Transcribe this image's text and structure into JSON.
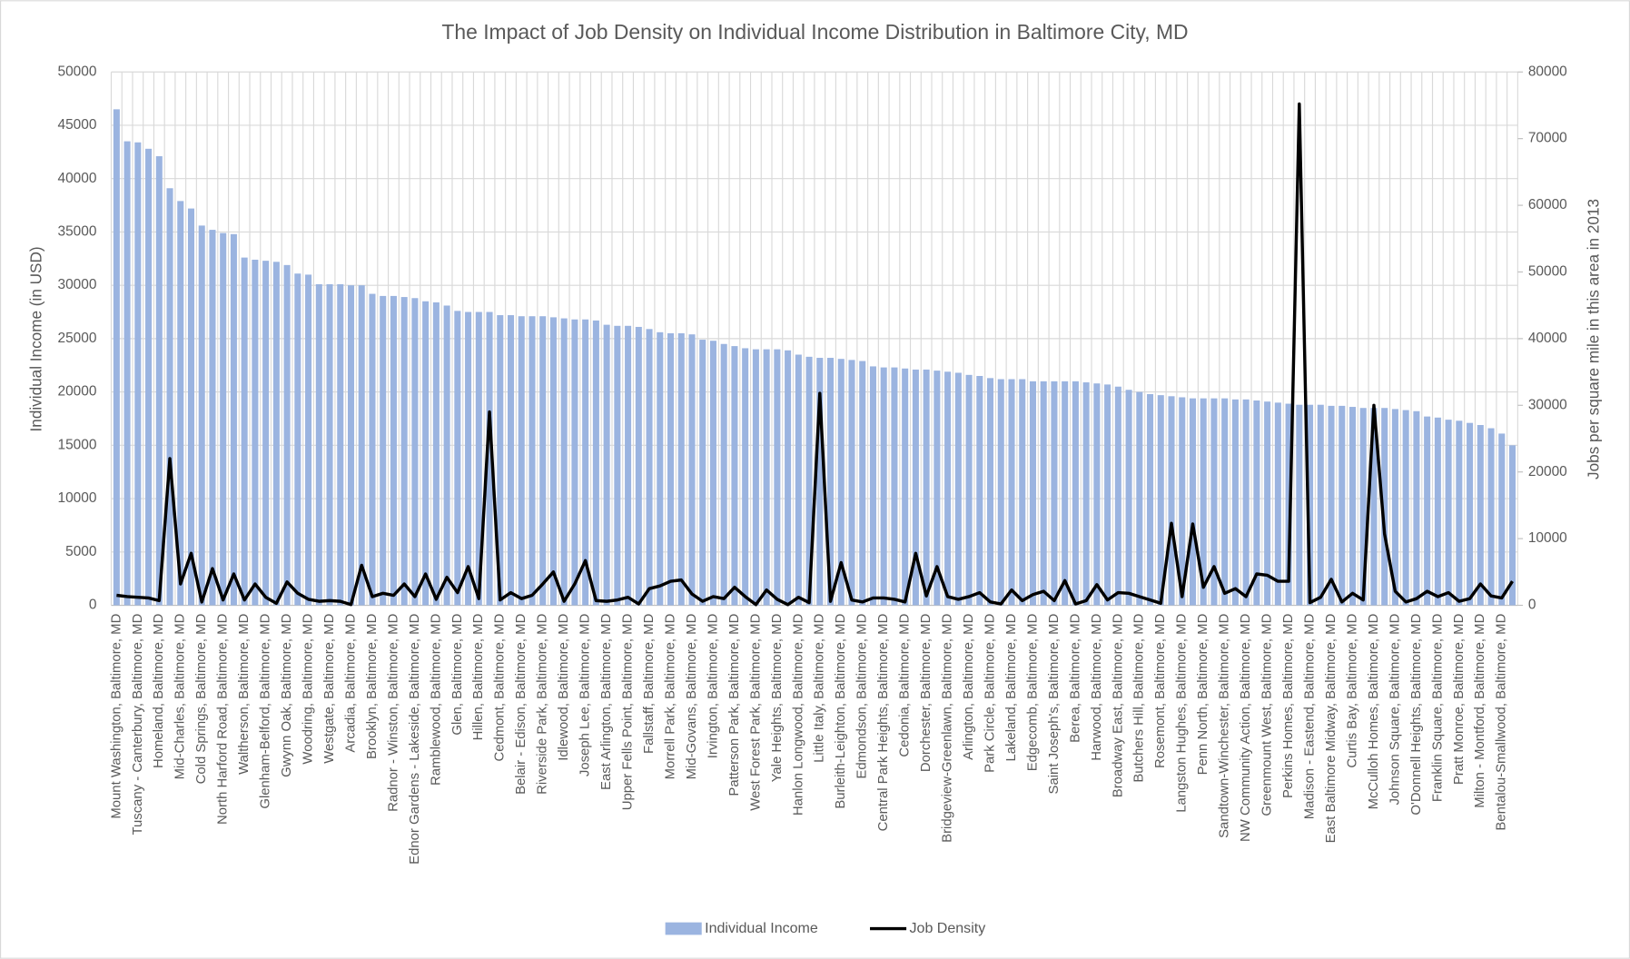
{
  "chart_data": {
    "type": "bar-line",
    "title": "The Impact of Job Density on Individual Income Distribution in Baltimore City, MD",
    "ylabel": "Individual Income  (in USD)",
    "y2label": "Jobs per square mile in this area in 2013",
    "categories": [
      "Mount Washington, Baltimore, MD",
      null,
      "Tuscany - Canterbury, Baltimore, MD",
      null,
      "Homeland, Baltimore, MD",
      null,
      "Mid-Charles, Baltimore, MD",
      null,
      "Cold Springs, Baltimore, MD",
      null,
      "North Harford Road, Baltimore, MD",
      null,
      "Waltherson, Baltimore, MD",
      null,
      "Glenham-Belford, Baltimore, MD",
      null,
      "Gwynn Oak, Baltimore, MD",
      null,
      "Woodring, Baltimore, MD",
      null,
      "Westgate, Baltimore, MD",
      null,
      "Arcadia, Baltimore, MD",
      null,
      "Brooklyn, Baltimore, MD",
      null,
      "Radnor - Winston, Baltimore, MD",
      null,
      "Ednor Gardens - Lakeside, Baltimore, MD",
      null,
      "Ramblewood, Baltimore, MD",
      null,
      "Glen, Baltimore, MD",
      null,
      "Hillen, Baltimore, MD",
      null,
      "Cedmont, Baltimore, MD",
      null,
      "Belair - Edison, Baltimore, MD",
      null,
      "Riverside Park, Baltimore, MD",
      null,
      "Idlewood, Baltimore, MD",
      null,
      "Joseph Lee, Baltimore, MD",
      null,
      "East Arlington, Baltimore, MD",
      null,
      "Upper Fells Point, Baltimore, MD",
      null,
      "Fallstaff, Baltimore, MD",
      null,
      "Morrell Park, Baltimore, MD",
      null,
      "Mid-Govans, Baltimore, MD",
      null,
      "Irvington, Baltimore, MD",
      null,
      "Patterson Park, Baltimore, MD",
      null,
      "West Forest Park, Baltimore, MD",
      null,
      "Yale Heights, Baltimore, MD",
      null,
      "Hanlon Longwood, Baltimore, MD",
      null,
      "Little Italy, Baltimore, MD",
      null,
      "Burleith-Leighton, Baltimore, MD",
      null,
      "Edmondson, Baltimore, MD",
      null,
      "Central Park Heights, Baltimore, MD",
      null,
      "Cedonia, Baltimore, MD",
      null,
      "Dorchester, Baltimore, MD",
      null,
      "Bridgeview-Greenlawn, Baltimore, MD",
      null,
      "Arlington, Baltimore, MD",
      null,
      "Park Circle, Baltimore, MD",
      null,
      "Lakeland, Baltimore, MD",
      null,
      "Edgecomb, Baltimore, MD",
      null,
      "Saint Joseph's, Baltimore, MD",
      null,
      "Berea, Baltimore, MD",
      null,
      "Harwood, Baltimore, MD",
      null,
      "Broadway East, Baltimore, MD",
      null,
      "Butchers Hill, Baltimore, MD",
      null,
      "Rosemont, Baltimore, MD",
      null,
      "Langston Hughes, Baltimore, MD",
      null,
      "Penn North, Baltimore, MD",
      null,
      "Sandtown-Winchester, Baltimore, MD",
      null,
      "NW Community Action, Baltimore, MD",
      null,
      "Greenmount West, Baltimore, MD",
      null,
      "Perkins Homes, Baltimore, MD",
      null,
      "Madison - Eastend, Baltimore, MD",
      null,
      "East Baltimore Midway, Baltimore, MD",
      null,
      "Curtis Bay, Baltimore, MD",
      null,
      "McCulloh Homes, Baltimore, MD",
      null,
      "Johnson Square, Baltimore, MD",
      null,
      "O'Donnell Heights, Baltimore, MD",
      null,
      "Franklin Square, Baltimore, MD",
      null,
      "Pratt Monroe, Baltimore, MD",
      null,
      "Milton - Montford, Baltimore, MD",
      null,
      "Bentalou-Smallwood, Baltimore, MD",
      null
    ],
    "series": [
      {
        "name": "Individual Income",
        "type": "bar",
        "color": "#9bb4e0",
        "values": [
          46500,
          43500,
          43400,
          42800,
          42100,
          39100,
          37900,
          37200,
          35600,
          35200,
          34900,
          34800,
          32600,
          32400,
          32300,
          32200,
          31900,
          31100,
          31000,
          30100,
          30100,
          30100,
          30000,
          30000,
          29200,
          29000,
          29000,
          28900,
          28800,
          28500,
          28400,
          28100,
          27600,
          27500,
          27500,
          27500,
          27200,
          27200,
          27100,
          27100,
          27100,
          27000,
          26900,
          26800,
          26800,
          26700,
          26300,
          26200,
          26200,
          26100,
          25900,
          25600,
          25500,
          25500,
          25400,
          24900,
          24800,
          24500,
          24300,
          24100,
          24000,
          24000,
          24000,
          23900,
          23500,
          23300,
          23200,
          23200,
          23100,
          23000,
          22900,
          22400,
          22300,
          22300,
          22200,
          22100,
          22100,
          22000,
          21900,
          21800,
          21600,
          21500,
          21300,
          21200,
          21200,
          21200,
          21000,
          21000,
          21000,
          21000,
          21000,
          20900,
          20800,
          20700,
          20500,
          20200,
          20000,
          19800,
          19700,
          19600,
          19500,
          19400,
          19400,
          19400,
          19400,
          19300,
          19300,
          19200,
          19100,
          19000,
          18900,
          18800,
          18800,
          18800,
          18700,
          18700,
          18600,
          18500,
          18500,
          18500,
          18400,
          18300,
          18200,
          17700,
          17600,
          17400,
          17300,
          17100,
          16900,
          16600,
          16100,
          15000
        ]
      },
      {
        "name": "Job Density",
        "type": "line",
        "axis": "y2",
        "color": "#000000",
        "values": [
          1500,
          1300,
          1200,
          1100,
          700,
          22000,
          3200,
          7800,
          500,
          5500,
          800,
          4700,
          800,
          3200,
          1200,
          300,
          3500,
          1800,
          900,
          600,
          700,
          600,
          100,
          6000,
          1300,
          1800,
          1500,
          3200,
          1300,
          4700,
          900,
          4200,
          1900,
          5800,
          1000,
          29000,
          800,
          1900,
          1000,
          1500,
          3200,
          5000,
          600,
          3200,
          6700,
          700,
          600,
          800,
          1200,
          200,
          2500,
          2900,
          3600,
          3800,
          1700,
          600,
          1300,
          1000,
          2700,
          1300,
          100,
          2300,
          900,
          100,
          1200,
          400,
          31800,
          600,
          6400,
          800,
          500,
          1100,
          1100,
          900,
          500,
          7800,
          1400,
          5800,
          1300,
          900,
          1300,
          1900,
          500,
          200,
          2300,
          700,
          1600,
          2100,
          700,
          3700,
          200,
          700,
          3100,
          800,
          1900,
          1800,
          1300,
          800,
          300,
          12300,
          1300,
          12200,
          2700,
          5800,
          1800,
          2500,
          1300,
          4700,
          4500,
          3600,
          3600,
          75200,
          400,
          1200,
          3900,
          500,
          1800,
          800,
          30000,
          10700,
          2100,
          500,
          1000,
          2100,
          1300,
          1900,
          600,
          1000,
          3200,
          1400,
          1100,
          3600
        ]
      }
    ],
    "ylim": [
      0,
      50000
    ],
    "yticks": [
      0,
      5000,
      10000,
      15000,
      20000,
      25000,
      30000,
      35000,
      40000,
      45000,
      50000
    ],
    "y2lim": [
      0,
      80000
    ],
    "y2ticks": [
      0,
      10000,
      20000,
      30000,
      40000,
      50000,
      60000,
      70000,
      80000
    ],
    "grid": true,
    "legend": "bottom"
  }
}
